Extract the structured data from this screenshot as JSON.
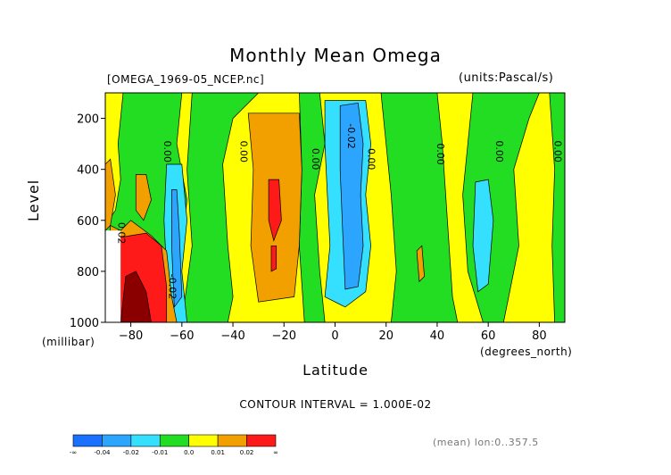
{
  "chart_data": {
    "type": "heatmap",
    "title": "Monthly Mean Omega",
    "file_label": "[OMEGA_1969-05_NCEP.nc]",
    "units_label": "(units:Pascal/s)",
    "xlabel": "Latitude",
    "x_unit": "(degrees_north)",
    "ylabel": "Level",
    "y_unit": "(millibar)",
    "xlim": [
      -90,
      90
    ],
    "ylim": [
      1000,
      100
    ],
    "x_ticks": [
      -80,
      -60,
      -40,
      -20,
      0,
      20,
      40,
      60,
      80
    ],
    "x_tick_labels": [
      "−80",
      "−60",
      "−40",
      "−20",
      "0",
      "20",
      "40",
      "60",
      "80"
    ],
    "y_ticks": [
      200,
      400,
      600,
      800,
      1000
    ],
    "y_tick_labels": [
      "200",
      "400",
      "600",
      "800",
      "1000"
    ],
    "contour_interval": "CONTOUR INTERVAL = 1.000E-02",
    "footer": "(mean) lon:0..357.5",
    "contour_labels": [
      {
        "text": "0.00",
        "lat": -67,
        "level": 330
      },
      {
        "text": "0.00",
        "lat": -37,
        "level": 330
      },
      {
        "text": "0.00",
        "lat": -9,
        "level": 360
      },
      {
        "text": "-0.02",
        "lat": 5,
        "level": 270
      },
      {
        "text": "0.00",
        "lat": 13,
        "level": 360
      },
      {
        "text": "0.00",
        "lat": 40,
        "level": 340
      },
      {
        "text": "0.00",
        "lat": 63,
        "level": 330
      },
      {
        "text": "0.00",
        "lat": 86,
        "level": 330
      },
      {
        "text": "-0.02",
        "lat": -65,
        "level": 860
      },
      {
        "text": "0.02",
        "lat": -85,
        "level": 650
      }
    ],
    "colorbar": {
      "levels": [
        "-∞",
        "-0.04",
        "-0.02",
        "-0.01",
        "0.0",
        "0.01",
        "0.02",
        "∞"
      ],
      "colors": [
        "#1a70ff",
        "#2ca5ff",
        "#35e0ff",
        "#22dd22",
        "#ffff00",
        "#f2a000",
        "#ff1a1a"
      ]
    },
    "regions": [
      {
        "name": "negative-north-tropics",
        "value": -0.01,
        "lat_range": [
          -2,
          15
        ],
        "level_range": [
          130,
          930
        ]
      },
      {
        "name": "negative-north-tropics-core",
        "value": -0.02,
        "lat_range": [
          2,
          12
        ],
        "level_range": [
          140,
          860
        ]
      },
      {
        "name": "positive-southern-subtropics",
        "value": 0.01,
        "lat_range": [
          -33,
          -14
        ],
        "level_range": [
          170,
          900
        ]
      },
      {
        "name": "positive-southern-subtropics-core",
        "value": 0.02,
        "lat_range": [
          -26,
          -21
        ],
        "level_range": [
          440,
          800
        ]
      },
      {
        "name": "negative-southern-midlatitudes",
        "value": -0.01,
        "lat_range": [
          -66,
          -58
        ],
        "level_range": [
          380,
          1000
        ]
      },
      {
        "name": "positive-antarctic-edge",
        "value": 0.02,
        "lat_range": [
          -84,
          -66
        ],
        "level_range": [
          640,
          1000
        ]
      },
      {
        "name": "negative-northern-midlatitudes",
        "value": -0.01,
        "lat_range": [
          55,
          62
        ],
        "level_range": [
          450,
          900
        ]
      }
    ]
  }
}
